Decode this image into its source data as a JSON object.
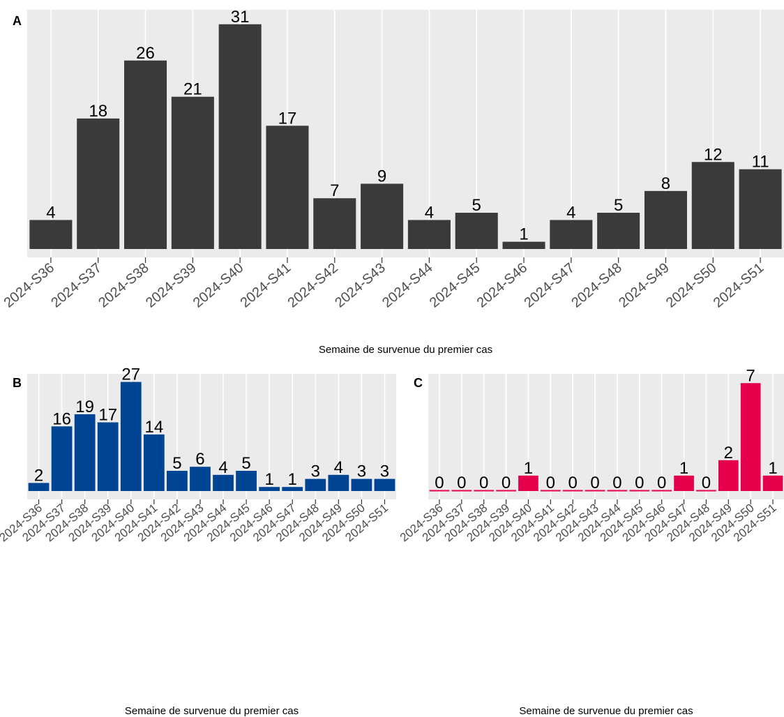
{
  "chart_data": [
    {
      "panel": "A",
      "type": "bar",
      "xlabel": "Semaine de survenue du premier cas",
      "ylabel": "",
      "categories": [
        "2024-S36",
        "2024-S37",
        "2024-S38",
        "2024-S39",
        "2024-S40",
        "2024-S41",
        "2024-S42",
        "2024-S43",
        "2024-S44",
        "2024-S45",
        "2024-S46",
        "2024-S47",
        "2024-S48",
        "2024-S49",
        "2024-S50",
        "2024-S51"
      ],
      "values": [
        4,
        18,
        26,
        21,
        31,
        17,
        7,
        9,
        4,
        5,
        1,
        4,
        5,
        8,
        12,
        11
      ],
      "data_labels": [
        "4",
        "18",
        "26",
        "21",
        "31",
        "17",
        "7",
        "9",
        "4",
        "5",
        "1",
        "4",
        "5",
        "8",
        "12",
        "11"
      ],
      "ylim": [
        0,
        33
      ],
      "grid": true,
      "color": "#3a3a3a",
      "background": "#ebebeb"
    },
    {
      "panel": "B",
      "type": "bar",
      "xlabel": "Semaine de survenue du premier cas",
      "ylabel": "",
      "categories": [
        "2024-S36",
        "2024-S37",
        "2024-S38",
        "2024-S39",
        "2024-S40",
        "2024-S41",
        "2024-S42",
        "2024-S43",
        "2024-S44",
        "2024-S45",
        "2024-S46",
        "2024-S47",
        "2024-S48",
        "2024-S49",
        "2024-S50",
        "2024-S51"
      ],
      "values": [
        2,
        16,
        19,
        17,
        27,
        14,
        5,
        6,
        4,
        5,
        1,
        1,
        3,
        4,
        3,
        3
      ],
      "data_labels": [
        "2",
        "16",
        "19",
        "17",
        "27",
        "14",
        "5",
        "6",
        "4",
        "5",
        "1",
        "1",
        "3",
        "4",
        "3",
        "3"
      ],
      "ylim": [
        0,
        29
      ],
      "grid": true,
      "color": "#004494",
      "background": "#ebebeb"
    },
    {
      "panel": "C",
      "type": "bar",
      "xlabel": "Semaine de survenue du premier cas",
      "ylabel": "",
      "categories": [
        "2024-S36",
        "2024-S37",
        "2024-S38",
        "2024-S39",
        "2024-S40",
        "2024-S41",
        "2024-S42",
        "2024-S43",
        "2024-S44",
        "2024-S45",
        "2024-S46",
        "2024-S47",
        "2024-S48",
        "2024-S49",
        "2024-S50",
        "2024-S51"
      ],
      "values": [
        0,
        0,
        0,
        0,
        1,
        0,
        0,
        0,
        0,
        0,
        0,
        1,
        0,
        2,
        7,
        1
      ],
      "data_labels": [
        "0",
        "0",
        "0",
        "0",
        "1",
        "0",
        "0",
        "0",
        "0",
        "0",
        "0",
        "1",
        "0",
        "2",
        "7",
        "1"
      ],
      "ylim": [
        0,
        7.6
      ],
      "grid": true,
      "color": "#e5004c",
      "background": "#ebebeb"
    }
  ]
}
